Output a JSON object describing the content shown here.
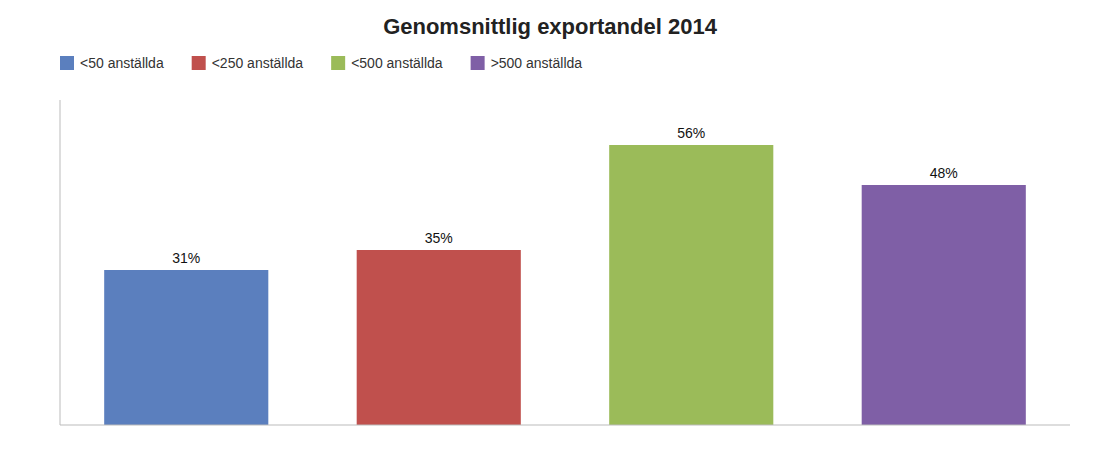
{
  "chart_data": {
    "type": "bar",
    "title": "Genomsnittlig exportandel 2014",
    "categories": [
      "<50 anställda",
      "<250 anställda",
      "<500 anställda",
      ">500 anställda"
    ],
    "values": [
      31,
      35,
      56,
      48
    ],
    "value_labels": [
      "31%",
      "35%",
      "56%",
      "48%"
    ],
    "colors": [
      "#5b7fbe",
      "#c0504d",
      "#9bbb59",
      "#7f5fa6"
    ],
    "ylim": [
      0,
      65
    ],
    "data_labels": true,
    "tick_labels": false,
    "grid": false,
    "legend": "top"
  }
}
